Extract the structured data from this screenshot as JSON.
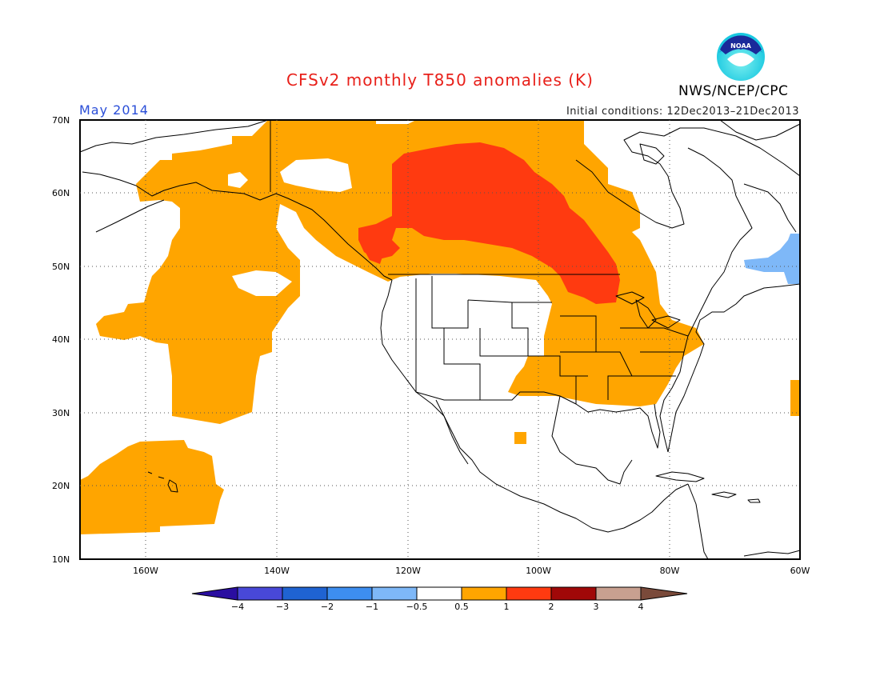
{
  "title": "CFSv2 monthly T850 anomalies (K)",
  "month": "May 2014",
  "initial_conditions": "Initial conditions: 12Dec2013–21Dec2013",
  "agency": "NWS/NCEP/CPC",
  "logo_text": "NOAA",
  "colors": {
    "title": "#e8201a",
    "month": "#2a4ed8",
    "anom_gt_0_5": "#ffa500",
    "anom_gt_1": "#ff3a10",
    "anom_lt_neg_0_5": "#7eb8f8",
    "coast": "#000000"
  },
  "map": {
    "lat_ticks": [
      "70N",
      "60N",
      "50N",
      "40N",
      "30N",
      "20N",
      "10N"
    ],
    "lon_ticks": [
      "160W",
      "140W",
      "120W",
      "100W",
      "80W",
      "60W"
    ]
  },
  "colorbar": {
    "labels": [
      "−4",
      "−3",
      "−2",
      "−1",
      "−0.5",
      "0.5",
      "1",
      "2",
      "3",
      "4"
    ],
    "colors": [
      "#2a0ea0",
      "#4848d8",
      "#1f63d2",
      "#3d8ef0",
      "#7eb8f8",
      "#ffffff",
      "#ffa500",
      "#ff3a10",
      "#a00808",
      "#c8a090",
      "#7a4a3a"
    ]
  }
}
